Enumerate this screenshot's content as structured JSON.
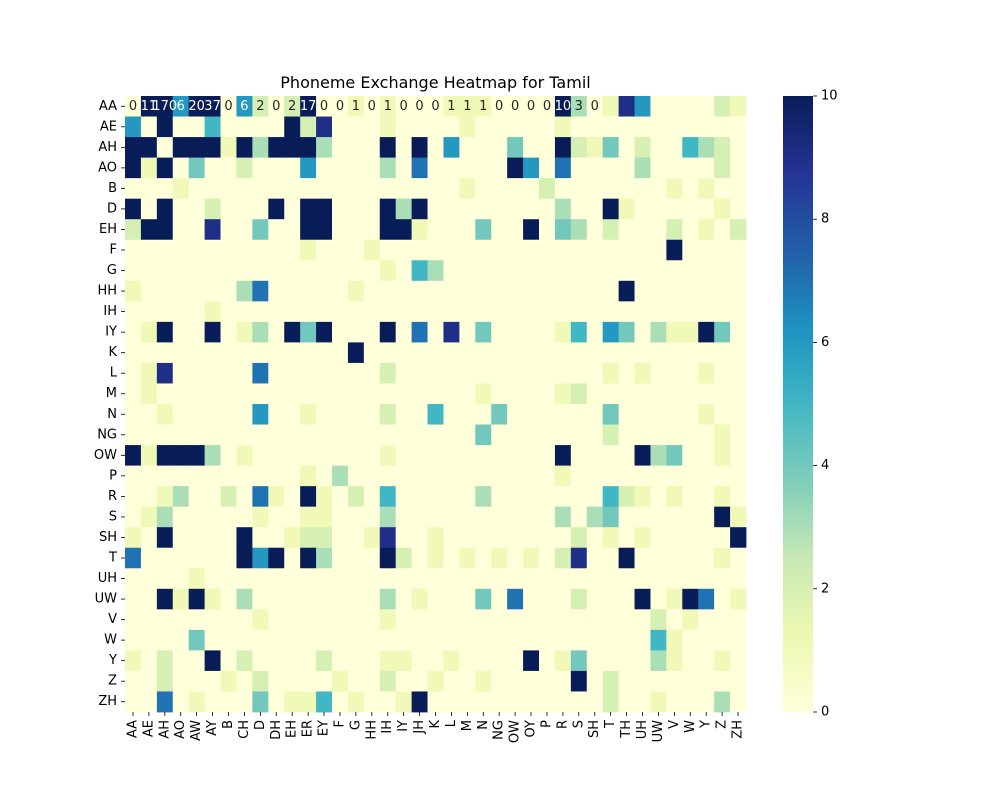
{
  "chart_data": {
    "type": "heatmap",
    "title": "Phoneme Exchange Heatmap for Tamil",
    "xlabel": "",
    "ylabel": "",
    "x_labels": [
      "AA",
      "AE",
      "AH",
      "AO",
      "AW",
      "AY",
      "B",
      "CH",
      "D",
      "DH",
      "EH",
      "ER",
      "EY",
      "F",
      "G",
      "HH",
      "IH",
      "IY",
      "JH",
      "K",
      "L",
      "M",
      "N",
      "NG",
      "OW",
      "OY",
      "P",
      "R",
      "S",
      "SH",
      "T",
      "TH",
      "UH",
      "UW",
      "V",
      "W",
      "Y",
      "Z",
      "ZH"
    ],
    "y_labels": [
      "AA",
      "AE",
      "AH",
      "AO",
      "B",
      "D",
      "EH",
      "F",
      "G",
      "HH",
      "IH",
      "IY",
      "K",
      "L",
      "M",
      "N",
      "NG",
      "OW",
      "P",
      "R",
      "S",
      "SH",
      "T",
      "UH",
      "UW",
      "V",
      "W",
      "Y",
      "Z",
      "ZH"
    ],
    "first_row_annotations": [
      "0",
      "11",
      "170",
      "6",
      "20",
      "37",
      "0",
      "6",
      "2",
      "0",
      "2",
      "17",
      "0",
      "0",
      "1",
      "0",
      "1",
      "0",
      "0",
      "0",
      "1",
      "1",
      "1",
      "0",
      "0",
      "0",
      "0",
      "10",
      "3",
      "0",
      "",
      "",
      "",
      "",
      "",
      "",
      "",
      "",
      ""
    ],
    "values": [
      [
        0,
        11,
        170,
        6,
        20,
        37,
        0,
        6,
        2,
        0,
        2,
        17,
        0,
        0,
        1,
        0,
        1,
        0,
        0,
        0,
        1,
        1,
        1,
        0,
        0,
        0,
        0,
        10,
        3,
        0,
        1,
        9,
        6,
        0,
        0,
        0,
        0,
        2,
        1
      ],
      [
        6,
        0,
        10,
        0,
        0,
        5,
        0,
        0,
        0,
        0,
        10,
        2,
        9,
        0,
        0,
        0,
        1,
        0,
        0,
        0,
        0,
        1,
        0,
        0,
        0,
        0,
        0,
        1,
        0,
        0,
        0,
        0,
        0,
        0,
        0,
        0,
        0,
        0,
        0
      ],
      [
        10,
        10,
        0,
        10,
        10,
        10,
        1,
        10,
        3,
        10,
        10,
        10,
        3,
        0,
        0,
        0,
        10,
        0,
        10,
        0,
        6,
        0,
        0,
        0,
        4,
        0,
        0,
        10,
        2,
        1,
        4,
        0,
        2,
        0,
        0,
        5,
        3,
        2,
        0
      ],
      [
        10,
        1,
        10,
        0,
        4,
        0,
        0,
        2,
        0,
        0,
        0,
        6,
        0,
        0,
        0,
        0,
        3,
        0,
        7,
        0,
        0,
        0,
        0,
        0,
        10,
        6,
        0,
        7,
        0,
        0,
        0,
        0,
        3,
        0,
        0,
        0,
        0,
        2,
        0
      ],
      [
        0,
        0,
        0,
        1,
        0,
        0,
        0,
        0,
        0,
        0,
        0,
        0,
        0,
        0,
        0,
        0,
        0,
        0,
        0,
        0,
        0,
        1,
        0,
        0,
        0,
        0,
        2,
        0,
        0,
        0,
        0,
        0,
        0,
        0,
        1,
        0,
        1,
        0,
        0
      ],
      [
        10,
        0,
        10,
        0,
        0,
        2,
        0,
        0,
        0,
        10,
        0,
        10,
        10,
        0,
        0,
        0,
        10,
        3,
        10,
        0,
        0,
        0,
        0,
        0,
        0,
        0,
        0,
        3,
        0,
        0,
        10,
        1,
        0,
        0,
        0,
        0,
        0,
        1,
        0
      ],
      [
        2,
        10,
        10,
        0,
        0,
        9,
        0,
        0,
        4,
        0,
        0,
        10,
        10,
        0,
        0,
        0,
        10,
        10,
        1,
        0,
        0,
        0,
        4,
        0,
        0,
        10,
        0,
        4,
        3,
        0,
        2,
        0,
        0,
        0,
        2,
        0,
        1,
        0,
        2
      ],
      [
        0,
        0,
        0,
        0,
        0,
        0,
        0,
        0,
        0,
        0,
        0,
        1,
        0,
        0,
        0,
        1,
        0,
        0,
        0,
        0,
        0,
        0,
        0,
        0,
        0,
        0,
        0,
        0,
        0,
        0,
        0,
        0,
        0,
        0,
        10,
        0,
        0,
        0,
        0
      ],
      [
        0,
        0,
        0,
        0,
        0,
        0,
        0,
        0,
        0,
        0,
        0,
        0,
        0,
        0,
        0,
        0,
        1,
        0,
        5,
        3,
        0,
        0,
        0,
        0,
        0,
        0,
        0,
        0,
        0,
        0,
        0,
        0,
        0,
        0,
        0,
        0,
        0,
        0,
        0
      ],
      [
        1,
        0,
        0,
        0,
        0,
        0,
        0,
        3,
        7,
        0,
        0,
        0,
        0,
        0,
        1,
        0,
        0,
        0,
        0,
        0,
        0,
        0,
        0,
        0,
        0,
        0,
        0,
        0,
        0,
        0,
        0,
        10,
        0,
        0,
        0,
        0,
        0,
        0,
        0
      ],
      [
        0,
        0,
        0,
        0,
        0,
        1,
        0,
        0,
        0,
        0,
        0,
        0,
        0,
        0,
        0,
        0,
        0,
        0,
        0,
        0,
        0,
        0,
        0,
        0,
        0,
        0,
        0,
        0,
        0,
        0,
        0,
        0,
        0,
        0,
        0,
        0,
        0,
        0,
        0
      ],
      [
        0,
        1,
        10,
        0,
        0,
        10,
        0,
        1,
        3,
        0,
        10,
        4,
        10,
        0,
        0,
        0,
        10,
        0,
        7,
        0,
        9,
        0,
        4,
        0,
        0,
        0,
        0,
        1,
        5,
        0,
        6,
        4,
        0,
        3,
        1,
        1,
        10,
        4,
        0
      ],
      [
        0,
        0,
        0,
        0,
        0,
        0,
        0,
        0,
        0,
        0,
        0,
        0,
        0,
        0,
        10,
        0,
        0,
        0,
        0,
        0,
        0,
        0,
        0,
        0,
        0,
        0,
        0,
        0,
        0,
        0,
        0,
        0,
        0,
        0,
        0,
        0,
        0,
        0,
        0
      ],
      [
        0,
        1,
        9,
        0,
        0,
        0,
        0,
        0,
        7,
        0,
        0,
        0,
        0,
        0,
        0,
        0,
        2,
        0,
        0,
        0,
        0,
        0,
        0,
        0,
        0,
        0,
        0,
        0,
        0,
        0,
        1,
        0,
        1,
        0,
        0,
        0,
        1,
        0,
        0
      ],
      [
        0,
        1,
        0,
        0,
        0,
        0,
        0,
        0,
        0,
        0,
        0,
        0,
        0,
        0,
        0,
        0,
        0,
        0,
        0,
        0,
        0,
        0,
        1,
        0,
        0,
        0,
        0,
        1,
        2,
        0,
        0,
        0,
        0,
        0,
        0,
        0,
        0,
        0,
        0
      ],
      [
        0,
        0,
        1,
        0,
        0,
        0,
        0,
        0,
        6,
        0,
        0,
        1,
        0,
        0,
        0,
        0,
        2,
        0,
        0,
        5,
        0,
        0,
        0,
        4,
        0,
        0,
        0,
        0,
        0,
        0,
        4,
        0,
        0,
        0,
        0,
        0,
        1,
        0,
        0
      ],
      [
        0,
        0,
        0,
        0,
        0,
        0,
        0,
        0,
        0,
        0,
        0,
        0,
        0,
        0,
        0,
        0,
        0,
        0,
        0,
        0,
        0,
        0,
        4,
        0,
        0,
        0,
        0,
        0,
        0,
        0,
        2,
        0,
        0,
        0,
        0,
        0,
        0,
        1,
        0
      ],
      [
        10,
        1,
        10,
        10,
        10,
        3,
        0,
        1,
        0,
        0,
        0,
        0,
        0,
        0,
        0,
        0,
        1,
        0,
        0,
        0,
        0,
        0,
        0,
        0,
        0,
        0,
        0,
        10,
        0,
        0,
        0,
        0,
        10,
        3,
        4,
        0,
        0,
        1,
        0
      ],
      [
        0,
        0,
        0,
        0,
        0,
        0,
        0,
        0,
        0,
        0,
        0,
        1,
        0,
        3,
        0,
        0,
        0,
        0,
        0,
        0,
        0,
        0,
        0,
        0,
        0,
        0,
        0,
        1,
        0,
        0,
        0,
        0,
        0,
        0,
        0,
        0,
        0,
        0,
        0
      ],
      [
        0,
        0,
        1,
        3,
        0,
        0,
        2,
        0,
        7,
        1,
        0,
        10,
        1,
        0,
        2,
        0,
        5,
        0,
        0,
        0,
        0,
        0,
        3,
        0,
        0,
        0,
        0,
        0,
        0,
        0,
        5,
        2,
        1,
        0,
        1,
        0,
        0,
        1,
        0
      ],
      [
        0,
        1,
        3,
        0,
        0,
        0,
        0,
        0,
        1,
        0,
        0,
        1,
        1,
        0,
        0,
        0,
        3,
        0,
        0,
        0,
        0,
        0,
        0,
        0,
        0,
        0,
        0,
        3,
        0,
        3,
        4,
        0,
        0,
        0,
        0,
        0,
        0,
        10,
        1
      ],
      [
        1,
        0,
        10,
        0,
        0,
        0,
        0,
        10,
        0,
        0,
        1,
        2,
        2,
        0,
        0,
        1,
        9,
        0,
        0,
        1,
        0,
        0,
        0,
        0,
        0,
        0,
        0,
        0,
        2,
        0,
        1,
        0,
        1,
        0,
        0,
        0,
        0,
        0,
        10
      ],
      [
        7,
        0,
        0,
        0,
        0,
        0,
        0,
        10,
        6,
        10,
        0,
        10,
        3,
        0,
        0,
        0,
        10,
        2,
        0,
        1,
        0,
        1,
        0,
        1,
        0,
        1,
        0,
        2,
        9,
        0,
        0,
        10,
        0,
        0,
        0,
        0,
        0,
        1,
        0
      ],
      [
        0,
        0,
        0,
        0,
        1,
        0,
        0,
        0,
        0,
        0,
        0,
        0,
        0,
        0,
        0,
        0,
        0,
        0,
        0,
        0,
        0,
        0,
        0,
        0,
        0,
        0,
        0,
        0,
        0,
        0,
        0,
        0,
        0,
        0,
        0,
        0,
        0,
        0,
        0
      ],
      [
        0,
        0,
        10,
        1,
        10,
        1,
        0,
        3,
        0,
        0,
        0,
        0,
        0,
        0,
        0,
        0,
        3,
        0,
        1,
        0,
        0,
        0,
        4,
        0,
        7,
        0,
        0,
        0,
        2,
        0,
        0,
        0,
        10,
        0,
        1,
        10,
        7,
        0,
        1
      ],
      [
        0,
        0,
        0,
        0,
        0,
        0,
        0,
        0,
        1,
        0,
        0,
        0,
        0,
        0,
        0,
        0,
        1,
        0,
        0,
        0,
        0,
        0,
        0,
        0,
        0,
        0,
        0,
        0,
        0,
        0,
        0,
        0,
        0,
        2,
        0,
        1,
        0,
        0,
        0
      ],
      [
        0,
        0,
        0,
        0,
        4,
        0,
        0,
        0,
        0,
        0,
        0,
        0,
        0,
        0,
        0,
        0,
        0,
        0,
        0,
        0,
        0,
        0,
        0,
        0,
        0,
        0,
        0,
        0,
        0,
        0,
        0,
        0,
        0,
        5,
        1,
        0,
        0,
        0,
        0
      ],
      [
        1,
        0,
        2,
        0,
        0,
        10,
        0,
        2,
        0,
        0,
        0,
        0,
        2,
        0,
        0,
        0,
        1,
        1,
        0,
        0,
        1,
        0,
        0,
        0,
        0,
        10,
        0,
        1,
        4,
        0,
        0,
        0,
        0,
        3,
        1,
        0,
        0,
        1,
        0
      ],
      [
        0,
        0,
        2,
        0,
        0,
        0,
        1,
        0,
        2,
        0,
        0,
        0,
        0,
        1,
        0,
        0,
        2,
        0,
        0,
        1,
        0,
        0,
        1,
        0,
        0,
        0,
        0,
        0,
        10,
        0,
        2,
        0,
        0,
        0,
        0,
        0,
        0,
        0,
        0
      ],
      [
        0,
        0,
        7,
        0,
        1,
        0,
        0,
        0,
        4,
        0,
        1,
        1,
        5,
        0,
        1,
        0,
        0,
        1,
        10,
        0,
        0,
        0,
        0,
        0,
        0,
        0,
        0,
        0,
        0,
        0,
        2,
        0,
        0,
        1,
        0,
        0,
        0,
        3,
        0
      ]
    ],
    "vmin": 0,
    "vmax": 10,
    "colorbar_ticks": [
      "0",
      "2",
      "4",
      "6",
      "8",
      "10"
    ],
    "colormap": "YlGnBu",
    "colormap_stops": [
      "#ffffd9",
      "#edf8b1",
      "#c7e9b4",
      "#7fcdbb",
      "#41b6c4",
      "#1d91c0",
      "#225ea8",
      "#253494",
      "#081d58"
    ],
    "annotation_light_color": "#ffffff",
    "annotation_dark_color": "#262626"
  }
}
